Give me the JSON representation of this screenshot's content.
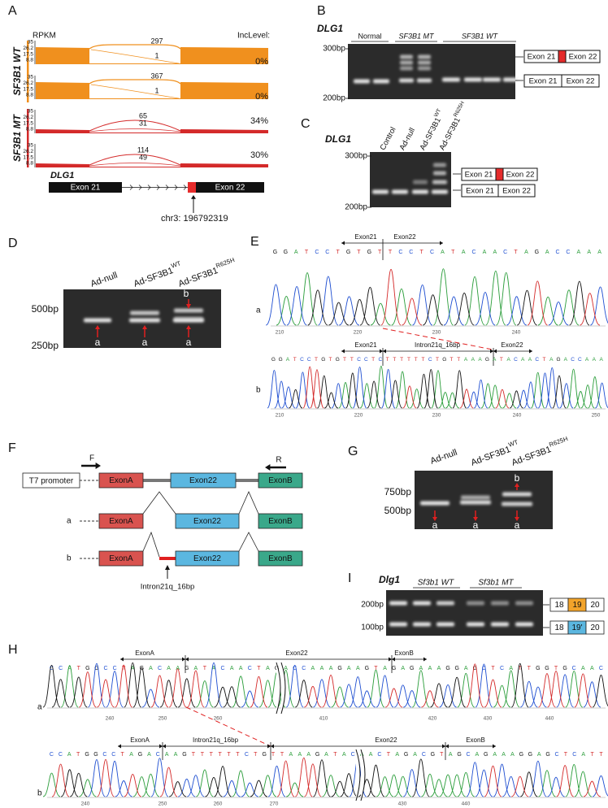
{
  "panel_labels": [
    "A",
    "B",
    "C",
    "D",
    "E",
    "F",
    "G",
    "H",
    "I"
  ],
  "A": {
    "y_label": "RPKM",
    "inc_label": "IncLevel:",
    "groups": [
      "SF3B1 WT",
      "SF3B1 MT"
    ],
    "yticks": [
      35,
      26.2,
      17.5,
      8.8
    ],
    "tracks": [
      {
        "upper": 297,
        "lower": 1,
        "inc": "0%"
      },
      {
        "upper": 367,
        "lower": 1,
        "inc": "0%"
      },
      {
        "upper": 65,
        "lower": 31,
        "inc": "34%"
      },
      {
        "upper": 114,
        "lower": 49,
        "inc": "30%"
      }
    ],
    "gene": "DLG1",
    "exons": [
      "Exon 21",
      "Exon 22"
    ],
    "position": "chr3: 196792319"
  },
  "B": {
    "gene": "DLG1",
    "lanes": [
      "Normal",
      "SF3B1 MT",
      "SF3B1 WT"
    ],
    "markers": [
      "300bp",
      "200bp"
    ],
    "isoforms": [
      [
        "Exon 21",
        "Exon 22"
      ],
      [
        "Exon 21",
        "Exon 22"
      ]
    ]
  },
  "C": {
    "gene": "DLG1",
    "lanes": [
      {
        "text": "Control"
      },
      {
        "text": "Ad-null"
      },
      {
        "text": "Ad-SF3B1",
        "sup": "WT"
      },
      {
        "text": "Ad-SF3B1",
        "sup": "R625H"
      }
    ],
    "markers": [
      "300bp",
      "200bp"
    ],
    "isoforms": [
      [
        "Exon 21",
        "Exon 22"
      ],
      [
        "Exon 21",
        "Exon 22"
      ]
    ]
  },
  "D": {
    "lanes": [
      {
        "text": "Ad-null"
      },
      {
        "text": "Ad-SF3B1",
        "sup": "WT"
      },
      {
        "text": "Ad-SF3B1",
        "sup": "R625H"
      }
    ],
    "markers": [
      "500bp",
      "250bp"
    ],
    "band_labels": [
      "a",
      "a",
      "a",
      "b"
    ]
  },
  "E": {
    "a": {
      "label": "a",
      "sequence": "GGATCCTGTGTTCCTCATACAACTAGACCAAA",
      "regions": [
        "Exon21",
        "Exon22"
      ],
      "ticks": [
        210,
        220,
        230,
        240
      ]
    },
    "b": {
      "label": "b",
      "sequence": "GGATCCTGTGTTCCTCTTTTTTCTGTTAAAGATACAACTAGACCAAA",
      "regions": [
        "Exon21",
        "Intron21q_16bp",
        "Exon22"
      ],
      "ticks": [
        210,
        220,
        230,
        240,
        250
      ]
    }
  },
  "F": {
    "primers": [
      "F",
      "R"
    ],
    "promoter": "T7 promoter",
    "exons": [
      "ExonA",
      "Exon22",
      "ExonB"
    ],
    "rows": [
      "a",
      "b"
    ],
    "intron": "Intron21q_16bp"
  },
  "G": {
    "lanes": [
      {
        "text": "Ad-null"
      },
      {
        "text": "Ad-SF3B1",
        "sup": "WT"
      },
      {
        "text": "Ad-SF3B1",
        "sup": "R625H"
      }
    ],
    "markers": [
      "750bp",
      "500bp"
    ],
    "band_labels": [
      "a",
      "a",
      "a",
      "b"
    ]
  },
  "H": {
    "a": {
      "label": "a",
      "sequence": "CCATGGCCTAGACAAGATACAACTAGACCAAAGAAGTAGAGAAAGGAGCTCATTGGTGCAAC",
      "regions": [
        "ExonA",
        "Exon22",
        "ExonB"
      ],
      "ticks": [
        240,
        250,
        260,
        410,
        420,
        430,
        440
      ]
    },
    "b": {
      "label": "b",
      "sequence": "CCATGGCCTAGACAAGTTTTTTCTGTTAAAGATACAACTAGACGTAGCAGAAAGGAGCTCATT",
      "regions": [
        "ExonA",
        "Intron21q_16bp",
        "Exon22",
        "ExonB"
      ],
      "ticks": [
        240,
        250,
        260,
        270,
        430,
        440
      ]
    }
  },
  "I": {
    "gene": "Dlg1",
    "lanes": [
      "Sf3b1 WT",
      "Sf3b1 MT"
    ],
    "markers": [
      "200bp",
      "100bp"
    ],
    "isoforms": [
      [
        "18",
        "19",
        "20"
      ],
      [
        "18",
        "19'",
        "20"
      ]
    ]
  }
}
